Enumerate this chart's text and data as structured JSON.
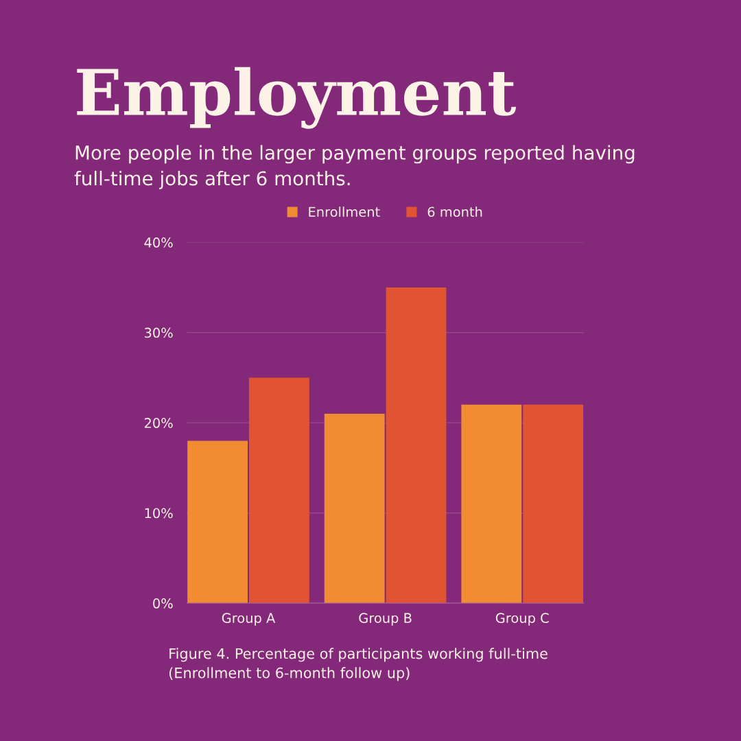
{
  "chart_data": {
    "type": "bar",
    "title": "Employment",
    "subtitle": "More people in the larger payment groups reported having\nfull-time jobs after 6 months.",
    "categories": [
      "Group A",
      "Group B",
      "Group C"
    ],
    "series": [
      {
        "name": "Enrollment",
        "color": "#f28c33",
        "values": [
          18,
          21,
          22
        ]
      },
      {
        "name": "6 month",
        "color": "#e05434",
        "values": [
          25,
          35,
          22
        ]
      }
    ],
    "ylim": [
      0,
      40
    ],
    "yticks": [
      {
        "value": 0,
        "label": "0%"
      },
      {
        "value": 10,
        "label": "10%"
      },
      {
        "value": 20,
        "label": "20%"
      },
      {
        "value": 30,
        "label": "30%"
      },
      {
        "value": 40,
        "label": "40%"
      }
    ],
    "grid": "y",
    "legend": "top",
    "annotations": [
      "Figure 4. Percentage of participants working full-time\n(Enrollment to 6-month follow up)"
    ]
  }
}
